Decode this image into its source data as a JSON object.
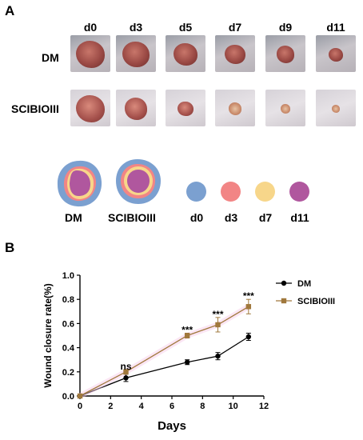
{
  "panel_a": {
    "letter": "A",
    "day_labels": [
      "d0",
      "d3",
      "d5",
      "d7",
      "d9",
      "d11"
    ],
    "rows": [
      {
        "label": "DM",
        "wound_sizes": [
          1.0,
          0.95,
          0.85,
          0.72,
          0.62,
          0.5
        ]
      },
      {
        "label": "SCIBIOIII",
        "wound_sizes": [
          1.0,
          0.8,
          0.55,
          0.45,
          0.35,
          0.3
        ]
      }
    ],
    "schematic_labels": [
      "DM",
      "SCIBIOIII"
    ],
    "legend": [
      {
        "label": "d0",
        "color": "#7ba0d0"
      },
      {
        "label": "d3",
        "color": "#f28585"
      },
      {
        "label": "d7",
        "color": "#f7d68a"
      },
      {
        "label": "d11",
        "color": "#b0579e"
      }
    ]
  },
  "panel_b": {
    "letter": "B",
    "significance": [
      "ns",
      "***",
      "***",
      "***"
    ]
  },
  "chart_data": {
    "type": "line",
    "xlabel": "Days",
    "ylabel": "Wound closure rate(%)",
    "xlim": [
      0,
      12
    ],
    "ylim": [
      0,
      1.0
    ],
    "xticks": [
      "0",
      "2",
      "4",
      "6",
      "8",
      "10",
      "12"
    ],
    "yticks": [
      "0.0",
      "0.2",
      "0.4",
      "0.6",
      "0.8",
      "1.0"
    ],
    "x": [
      0,
      3,
      7,
      9,
      11
    ],
    "series": [
      {
        "name": "DM",
        "color": "#000000",
        "marker": "circle",
        "values": [
          0.0,
          0.15,
          0.28,
          0.33,
          0.49
        ],
        "errors": [
          0,
          0.03,
          0.02,
          0.03,
          0.03
        ]
      },
      {
        "name": "SCIBIOIII",
        "color": "#a0783c",
        "marker": "square",
        "values": [
          0.0,
          0.2,
          0.5,
          0.59,
          0.74
        ],
        "errors": [
          0,
          0.02,
          0.02,
          0.06,
          0.06
        ]
      }
    ],
    "annotations": [
      {
        "x": 3,
        "y": 0.22,
        "text": "ns"
      },
      {
        "x": 7,
        "y": 0.52,
        "text": "***"
      },
      {
        "x": 9,
        "y": 0.65,
        "text": "***"
      },
      {
        "x": 11,
        "y": 0.8,
        "text": "***"
      }
    ],
    "legend_position": "top-right",
    "grid": false
  }
}
